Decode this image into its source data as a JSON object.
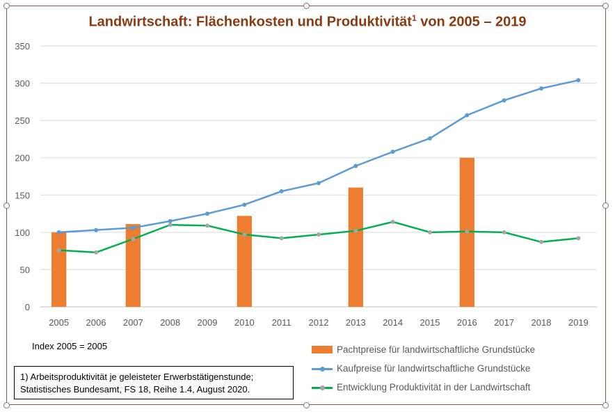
{
  "colors": {
    "bar": "#ed7d31",
    "kauf_line": "#5b9bd5",
    "prod_line": "#00b050",
    "prod_marker": "#a5a5a5",
    "grid": "#d9d9d9",
    "axis": "#bfbfbf"
  },
  "chart_data": {
    "type": "bar+line",
    "title": "Landwirtschaft: Flächenkosten und Produktivität",
    "title_sup": "1",
    "title_end": " von 2005 – 2019",
    "categories": [
      "2005",
      "2006",
      "2007",
      "2008",
      "2009",
      "2010",
      "2011",
      "2012",
      "2013",
      "2014",
      "2015",
      "2016",
      "2017",
      "2018",
      "2019"
    ],
    "ylim": [
      0,
      350
    ],
    "yticks": [
      0,
      50,
      100,
      150,
      200,
      250,
      300,
      350
    ],
    "grid": true,
    "legend_position": "bottom-right",
    "series": [
      {
        "name": "Pachtpreise für landwirtschaftliche Grundstücke",
        "kind": "bar",
        "values": [
          100,
          null,
          111,
          null,
          null,
          122,
          null,
          null,
          160,
          null,
          null,
          200,
          null,
          null,
          null
        ]
      },
      {
        "name": "Kaufpreise für landwirtschaftliche Grundstücke",
        "kind": "line",
        "values": [
          100,
          103,
          106,
          115,
          125,
          137,
          155,
          166,
          189,
          208,
          226,
          257,
          277,
          293,
          304
        ]
      },
      {
        "name": "Entwicklung Produktivität in der Landwirtschaft",
        "kind": "line",
        "values": [
          76,
          73,
          91,
          110,
          109,
          97,
          92,
          97,
          102,
          114,
          100,
          101,
          100,
          87,
          92
        ]
      }
    ]
  },
  "notes": {
    "index": "Index 2005 = 2005",
    "footnote_line1": "1) Arbeitsproduktivität je geleisteter Erwerbstätigenstunde;",
    "footnote_line2": "Statistisches Bundesamt, FS 18, Reihe 1.4, August 2020."
  }
}
